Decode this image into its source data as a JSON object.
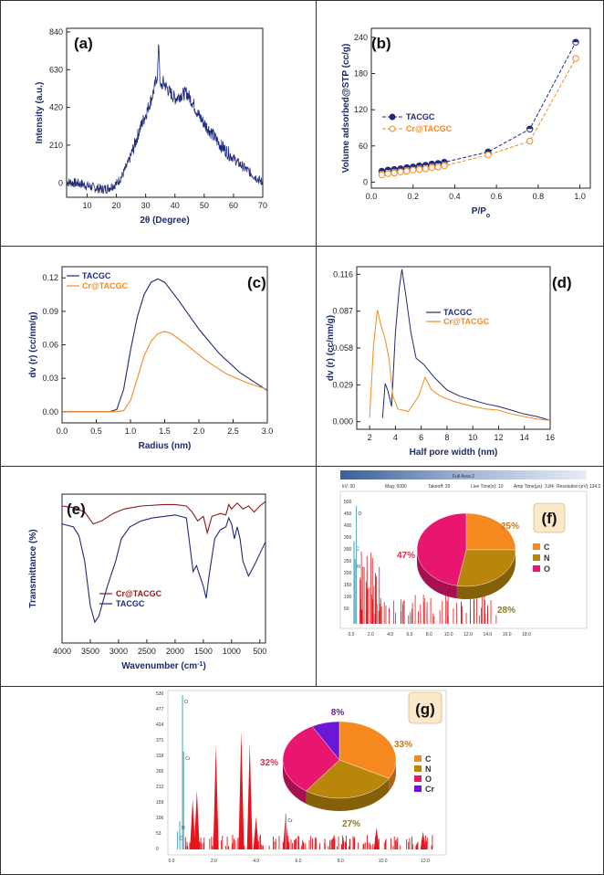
{
  "colors": {
    "navy": "#1f2a7a",
    "orange": "#f5891f",
    "maroon": "#8b1a1a",
    "red": "#e8141c",
    "pie_c": "#f5891f",
    "pie_n": "#b8860b",
    "pie_o": "#e8166f",
    "pie_cr": "#6a17d8",
    "pct_c": "#c9771a",
    "pct_n": "#8d7a2a",
    "pct_o": "#e02a4a",
    "pct_cr": "#5a2a8a"
  },
  "chart_data": [
    {
      "id": "a",
      "type": "line",
      "label": "(a)",
      "xlabel": "2θ (Degree)",
      "ylabel": "Intensity (a.u.)",
      "xlim": [
        3,
        70
      ],
      "ylim": [
        -80,
        860
      ],
      "xticks": [
        10,
        20,
        30,
        40,
        50,
        60,
        70
      ],
      "yticks": [
        0,
        210,
        420,
        630,
        840
      ],
      "series": [
        {
          "name": "XRD",
          "points": [
            [
              3,
              5
            ],
            [
              8,
              -5
            ],
            [
              12,
              -25
            ],
            [
              15,
              -35
            ],
            [
              17,
              -30
            ],
            [
              20,
              -5
            ],
            [
              22,
              40
            ],
            [
              24,
              110
            ],
            [
              26,
              200
            ],
            [
              28,
              300
            ],
            [
              30,
              380
            ],
            [
              32,
              470
            ],
            [
              33,
              530
            ],
            [
              34,
              600
            ],
            [
              34.5,
              780
            ],
            [
              35,
              520
            ],
            [
              36,
              560
            ],
            [
              38,
              510
            ],
            [
              40,
              470
            ],
            [
              42,
              490
            ],
            [
              44,
              500
            ],
            [
              46,
              450
            ],
            [
              48,
              380
            ],
            [
              50,
              330
            ],
            [
              52,
              290
            ],
            [
              55,
              220
            ],
            [
              58,
              170
            ],
            [
              61,
              120
            ],
            [
              64,
              80
            ],
            [
              67,
              40
            ],
            [
              70,
              0
            ]
          ]
        }
      ]
    },
    {
      "id": "b",
      "type": "line",
      "label": "(b)",
      "xlabel": "P/P",
      "xlabel_sub": "o",
      "ylabel": "Volume adsorbed@STP (cc/g)",
      "xlim": [
        0,
        1.05
      ],
      "ylim": [
        -10,
        255
      ],
      "xticks": [
        0.0,
        0.2,
        0.4,
        0.6,
        0.8,
        1.0
      ],
      "yticks": [
        0,
        60,
        120,
        180,
        240
      ],
      "series": [
        {
          "name": "TACGC",
          "marker": "half-filled-circle",
          "x": [
            0.05,
            0.08,
            0.11,
            0.14,
            0.17,
            0.2,
            0.23,
            0.26,
            0.29,
            0.32,
            0.35,
            0.56,
            0.76,
            0.98
          ],
          "y": [
            18,
            20,
            21,
            22,
            24,
            25,
            27,
            28,
            30,
            31,
            33,
            50,
            88,
            232
          ]
        },
        {
          "name": "Cr@TACGC",
          "marker": "open-circle",
          "x": [
            0.05,
            0.08,
            0.11,
            0.14,
            0.17,
            0.2,
            0.23,
            0.26,
            0.29,
            0.32,
            0.35,
            0.56,
            0.76,
            0.98
          ],
          "y": [
            12,
            14,
            15,
            17,
            18,
            20,
            21,
            22,
            24,
            25,
            27,
            45,
            68,
            205
          ]
        }
      ]
    },
    {
      "id": "c",
      "type": "line",
      "label": "(c)",
      "xlabel": "Radius (nm)",
      "ylabel": "dv (r) (cc/nm/g)",
      "xlim": [
        0,
        3
      ],
      "ylim": [
        -0.01,
        0.13
      ],
      "xticks": [
        0.0,
        0.5,
        1.0,
        1.5,
        2.0,
        2.5,
        3.0
      ],
      "yticks": [
        0.0,
        0.03,
        0.06,
        0.09,
        0.12
      ],
      "series": [
        {
          "name": "TACGC",
          "points": [
            [
              0,
              0
            ],
            [
              0.7,
              0
            ],
            [
              0.8,
              0.002
            ],
            [
              0.9,
              0.02
            ],
            [
              1.0,
              0.055
            ],
            [
              1.1,
              0.085
            ],
            [
              1.2,
              0.105
            ],
            [
              1.3,
              0.116
            ],
            [
              1.4,
              0.119
            ],
            [
              1.5,
              0.116
            ],
            [
              1.7,
              0.1
            ],
            [
              2.0,
              0.074
            ],
            [
              2.3,
              0.052
            ],
            [
              2.6,
              0.035
            ],
            [
              3.0,
              0.019
            ]
          ]
        },
        {
          "name": "Cr@TACGC",
          "points": [
            [
              0,
              0
            ],
            [
              0.8,
              0
            ],
            [
              0.9,
              0.001
            ],
            [
              1.0,
              0.01
            ],
            [
              1.1,
              0.03
            ],
            [
              1.2,
              0.05
            ],
            [
              1.3,
              0.063
            ],
            [
              1.4,
              0.07
            ],
            [
              1.5,
              0.072
            ],
            [
              1.6,
              0.07
            ],
            [
              1.8,
              0.061
            ],
            [
              2.1,
              0.046
            ],
            [
              2.4,
              0.034
            ],
            [
              2.7,
              0.026
            ],
            [
              3.0,
              0.02
            ]
          ]
        }
      ]
    },
    {
      "id": "d",
      "type": "line",
      "label": "(d)",
      "xlabel": "Half pore width (nm)",
      "ylabel": "dv (r) (cc/nm/g)",
      "xlim": [
        1,
        16
      ],
      "ylim": [
        -0.006,
        0.122
      ],
      "xticks": [
        2,
        4,
        6,
        8,
        10,
        12,
        14,
        16
      ],
      "yticks": [
        0.0,
        0.029,
        0.058,
        0.087,
        0.116
      ],
      "series": [
        {
          "name": "TACGC",
          "points": [
            [
              3,
              0.003
            ],
            [
              3.2,
              0.03
            ],
            [
              3.4,
              0.025
            ],
            [
              3.7,
              0.012
            ],
            [
              4.0,
              0.07
            ],
            [
              4.3,
              0.105
            ],
            [
              4.5,
              0.12
            ],
            [
              4.8,
              0.1
            ],
            [
              5.2,
              0.07
            ],
            [
              5.6,
              0.05
            ],
            [
              6.2,
              0.045
            ],
            [
              7,
              0.035
            ],
            [
              8,
              0.025
            ],
            [
              9,
              0.02
            ],
            [
              10,
              0.017
            ],
            [
              11,
              0.014
            ],
            [
              12,
              0.012
            ],
            [
              13,
              0.009
            ],
            [
              14,
              0.006
            ],
            [
              15,
              0.004
            ],
            [
              16,
              0.001
            ]
          ]
        },
        {
          "name": "Cr@TACGC",
          "points": [
            [
              2,
              0.003
            ],
            [
              2.3,
              0.06
            ],
            [
              2.6,
              0.088
            ],
            [
              2.9,
              0.075
            ],
            [
              3.2,
              0.065
            ],
            [
              3.5,
              0.05
            ],
            [
              3.8,
              0.02
            ],
            [
              4.2,
              0.01
            ],
            [
              5,
              0.008
            ],
            [
              5.8,
              0.02
            ],
            [
              6.3,
              0.035
            ],
            [
              6.8,
              0.025
            ],
            [
              7.5,
              0.02
            ],
            [
              8.5,
              0.016
            ],
            [
              10,
              0.012
            ],
            [
              11,
              0.01
            ],
            [
              12,
              0.009
            ],
            [
              13,
              0.006
            ],
            [
              14,
              0.004
            ],
            [
              15,
              0.002
            ],
            [
              16,
              0.001
            ]
          ]
        }
      ]
    },
    {
      "id": "e",
      "type": "line",
      "label": "(e)",
      "xlabel": "Wavenumber (cm",
      "xlabel_sup": "-1",
      "xlabel_tail": ")",
      "ylabel": "Transmittance (%)",
      "xlim": [
        4000,
        400
      ],
      "ylim": [
        0,
        100
      ],
      "xticks": [
        4000,
        3500,
        3000,
        2500,
        2000,
        1500,
        1000,
        500
      ],
      "yticks": [],
      "series": [
        {
          "name": "Cr@TACGC",
          "points": [
            [
              4000,
              92
            ],
            [
              3800,
              91
            ],
            [
              3600,
              88
            ],
            [
              3450,
              80
            ],
            [
              3300,
              82
            ],
            [
              3100,
              87
            ],
            [
              2900,
              90
            ],
            [
              2600,
              92
            ],
            [
              2200,
              93
            ],
            [
              2000,
              93
            ],
            [
              1800,
              92
            ],
            [
              1700,
              88
            ],
            [
              1600,
              82
            ],
            [
              1500,
              85
            ],
            [
              1430,
              74
            ],
            [
              1350,
              85
            ],
            [
              1200,
              87
            ],
            [
              1100,
              86
            ],
            [
              1050,
              93
            ],
            [
              1000,
              90
            ],
            [
              900,
              94
            ],
            [
              800,
              90
            ],
            [
              700,
              92
            ],
            [
              600,
              88
            ],
            [
              500,
              92
            ],
            [
              400,
              95
            ]
          ]
        },
        {
          "name": "TACGC",
          "points": [
            [
              4000,
              80
            ],
            [
              3800,
              78
            ],
            [
              3700,
              72
            ],
            [
              3600,
              55
            ],
            [
              3500,
              25
            ],
            [
              3420,
              14
            ],
            [
              3350,
              18
            ],
            [
              3200,
              38
            ],
            [
              3050,
              55
            ],
            [
              2950,
              70
            ],
            [
              2800,
              78
            ],
            [
              2600,
              82
            ],
            [
              2400,
              84
            ],
            [
              2200,
              85
            ],
            [
              2000,
              86
            ],
            [
              1900,
              85
            ],
            [
              1800,
              84
            ],
            [
              1720,
              60
            ],
            [
              1680,
              48
            ],
            [
              1620,
              52
            ],
            [
              1560,
              45
            ],
            [
              1500,
              38
            ],
            [
              1450,
              30
            ],
            [
              1400,
              45
            ],
            [
              1300,
              70
            ],
            [
              1200,
              76
            ],
            [
              1100,
              78
            ],
            [
              1050,
              84
            ],
            [
              1000,
              80
            ],
            [
              950,
              70
            ],
            [
              900,
              78
            ],
            [
              850,
              70
            ],
            [
              800,
              55
            ],
            [
              700,
              45
            ],
            [
              600,
              52
            ],
            [
              500,
              60
            ],
            [
              400,
              68
            ]
          ]
        }
      ]
    },
    {
      "id": "f",
      "type": "pie",
      "label": "(f)",
      "title": "Full Area 2",
      "header": [
        "kV: 30",
        "Mag: 5000",
        "Takeoff: 35",
        "Live Time(s): 10",
        "Amp Time(µs): 3.84",
        "Resolution:(eV) 134.2"
      ],
      "eds_yticks": [
        "500",
        "450",
        "400",
        "350",
        "300",
        "250",
        "200",
        "150",
        "100",
        "50"
      ],
      "eds_xticks": [
        "0.0",
        "2.0",
        "4.0",
        "6.0",
        "8.0",
        "10.0",
        "12.0",
        "14.0",
        "16.0",
        "18.0"
      ],
      "eds_peaks": [
        {
          "label": "C",
          "x": 0.28,
          "y": 330
        },
        {
          "label": "N",
          "x": 0.39,
          "y": 260
        },
        {
          "label": "O",
          "x": 0.52,
          "y": 470
        }
      ],
      "categories": [
        "C",
        "N",
        "O"
      ],
      "values": [
        25,
        28,
        47
      ],
      "labels": [
        "25%",
        "28%",
        "47%"
      ]
    },
    {
      "id": "g",
      "type": "pie",
      "label": "(g)",
      "eds_yticks": [
        "530",
        "477",
        "424",
        "371",
        "318",
        "265",
        "212",
        "159",
        "106",
        "53",
        "0"
      ],
      "eds_xticks": [
        "0.0",
        "2.0",
        "4.0",
        "6.0",
        "8.0",
        "10.0",
        "12.0"
      ],
      "eds_peaks": [
        {
          "label": "O",
          "x": 0.52,
          "y": 520
        },
        {
          "label": "Cr",
          "x": 0.57,
          "y": 330
        },
        {
          "label": "N",
          "x": 0.39,
          "y": 95
        },
        {
          "label": "C",
          "x": 0.28,
          "y": 60
        },
        {
          "label": "Cr",
          "x": 5.41,
          "y": 120
        }
      ],
      "categories": [
        "C",
        "N",
        "O",
        "Cr"
      ],
      "values": [
        33,
        27,
        32,
        8
      ],
      "labels": [
        "33%",
        "27%",
        "32%",
        "8%"
      ]
    }
  ]
}
